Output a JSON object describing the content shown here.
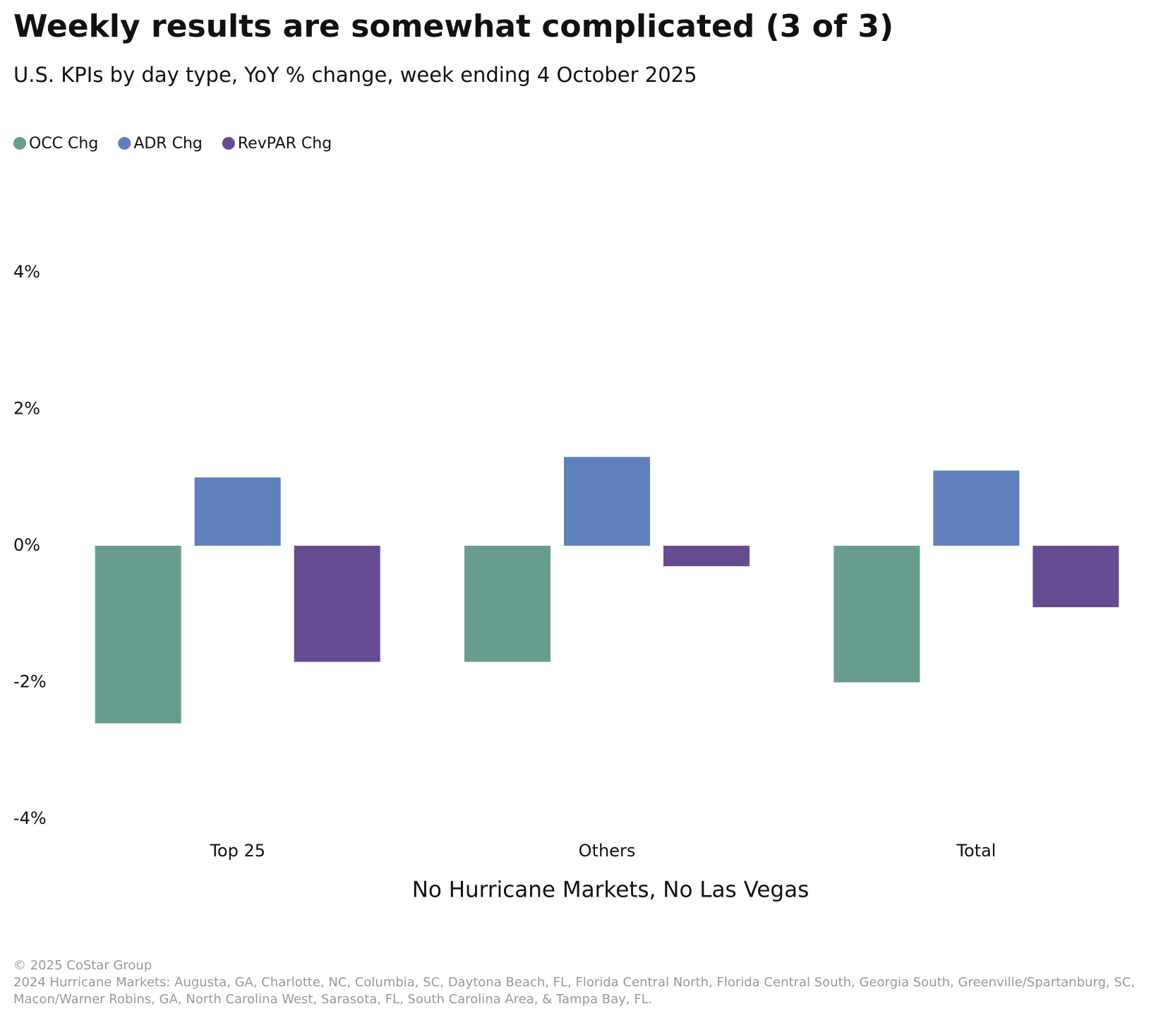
{
  "chart_data": {
    "type": "bar",
    "title": "Weekly results are somewhat complicated (3 of 3)",
    "subtitle": "U.S. KPIs by day type, YoY % change, week ending 4 October 2025",
    "x_label": "No Hurricane Markets, No Las Vegas",
    "categories": [
      "Top 25",
      "Others",
      "Total"
    ],
    "series": [
      {
        "name": "OCC Chg",
        "color": "#679c8f",
        "values": [
          -2.6,
          -1.7,
          -2.0
        ]
      },
      {
        "name": "ADR Chg",
        "color": "#5f80bd",
        "values": [
          1.0,
          1.3,
          1.1
        ]
      },
      {
        "name": "RevPAR Chg",
        "color": "#664b91",
        "values": [
          -1.7,
          -0.3,
          -0.9
        ]
      }
    ],
    "ylim": [
      -4,
      4
    ],
    "yticks": [
      {
        "value": -4,
        "label": "-4%"
      },
      {
        "value": -2,
        "label": "-2%"
      },
      {
        "value": 0,
        "label": "0%"
      },
      {
        "value": 2,
        "label": "2%"
      },
      {
        "value": 4,
        "label": "4%"
      }
    ],
    "grid": false,
    "legend": "top-left",
    "source": "© 2025 CoStar Group",
    "notes": [
      "2024 Hurricane Markets: Augusta, GA, Charlotte, NC, Columbia, SC, Daytona Beach, FL, Florida Central North, Florida Central South, Georgia South, Greenville/Spartanburg, SC,",
      "Macon/Warner Robins, GA, North Carolina West, Sarasota, FL, South Carolina Area, & Tampa Bay, FL."
    ]
  }
}
